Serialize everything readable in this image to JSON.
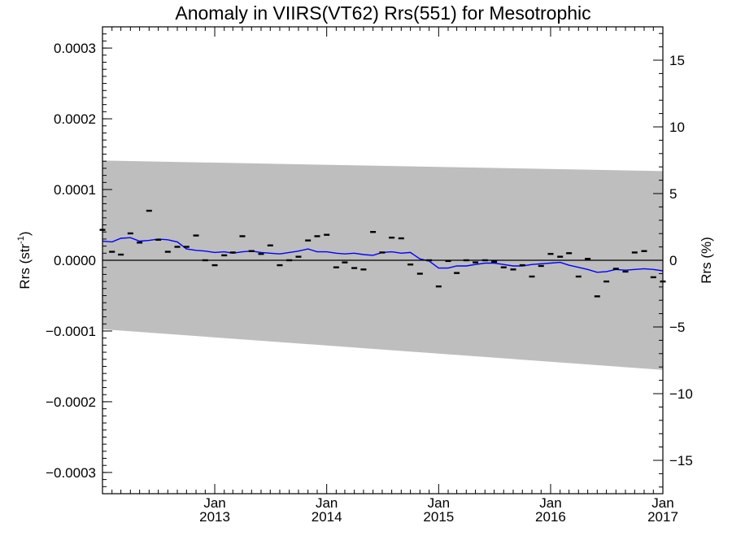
{
  "chart_data": {
    "type": "scatter",
    "title": "Anomaly in VIIRS(VT62) Rrs(551) for Mesotrophic",
    "ylabel_left": "Rrs (str",
    "ylabel_left_sup": "-1",
    "ylabel_left_close": ")",
    "ylabel_right": "Rrs (%)",
    "xlim": [
      "2012-01-01",
      "2017-01-01"
    ],
    "ylim_left": [
      -0.00033,
      0.00033
    ],
    "ylim_right": [
      -17.5,
      17.5
    ],
    "y_ticks_left": [
      {
        "value": 0.0003,
        "label": "0.0003"
      },
      {
        "value": 0.0002,
        "label": "0.0002"
      },
      {
        "value": 0.0001,
        "label": "0.0001"
      },
      {
        "value": 0.0,
        "label": "0.0000"
      },
      {
        "value": -0.0001,
        "label": "−0.0001"
      },
      {
        "value": -0.0002,
        "label": "−0.0002"
      },
      {
        "value": -0.0003,
        "label": "−0.0003"
      }
    ],
    "y_ticks_right": [
      {
        "value": 15,
        "label": "15"
      },
      {
        "value": 10,
        "label": "10"
      },
      {
        "value": 5,
        "label": "5"
      },
      {
        "value": 0,
        "label": "0"
      },
      {
        "value": -5,
        "label": "−5"
      },
      {
        "value": -10,
        "label": "−10"
      },
      {
        "value": -15,
        "label": "−15"
      }
    ],
    "x_ticks": [
      {
        "date": "2013-01-01",
        "line1": "Jan",
        "line2": "2013"
      },
      {
        "date": "2014-01-01",
        "line1": "Jan",
        "line2": "2014"
      },
      {
        "date": "2015-01-01",
        "line1": "Jan",
        "line2": "2015"
      },
      {
        "date": "2016-01-01",
        "line1": "Jan",
        "line2": "2016"
      },
      {
        "date": "2017-01-01",
        "line1": "Jan",
        "line2": "2017"
      }
    ],
    "band": {
      "color": "#bebebe",
      "start": {
        "date": "2012-01-01",
        "upper": 0.000141,
        "lower": -9.75e-05
      },
      "end": {
        "date": "2017-01-01",
        "upper": 0.000126,
        "lower": -0.000155
      }
    },
    "zero_line_color": "#000000",
    "points_color": "#000000",
    "line_color": "#0000ff",
    "points": [
      {
        "x": "2012-01-01",
        "y": 4.3e-05
      },
      {
        "x": "2012-02-01",
        "y": 1.2e-05
      },
      {
        "x": "2012-03-01",
        "y": 8e-06
      },
      {
        "x": "2012-04-01",
        "y": 3.8e-05
      },
      {
        "x": "2012-05-01",
        "y": 2.5e-05
      },
      {
        "x": "2012-06-01",
        "y": 7e-05
      },
      {
        "x": "2012-07-01",
        "y": 2.9e-05
      },
      {
        "x": "2012-08-01",
        "y": 1.2e-05
      },
      {
        "x": "2012-09-01",
        "y": 1.9e-05
      },
      {
        "x": "2012-10-01",
        "y": 1.9e-05
      },
      {
        "x": "2012-11-01",
        "y": 3.5e-05
      },
      {
        "x": "2012-12-01",
        "y": 0.0
      },
      {
        "x": "2013-01-01",
        "y": -7e-06
      },
      {
        "x": "2013-02-01",
        "y": 7e-06
      },
      {
        "x": "2013-03-01",
        "y": 1.1e-05
      },
      {
        "x": "2013-04-01",
        "y": 3.4e-05
      },
      {
        "x": "2013-05-01",
        "y": 1.3e-05
      },
      {
        "x": "2013-06-01",
        "y": 9e-06
      },
      {
        "x": "2013-07-01",
        "y": 2.1e-05
      },
      {
        "x": "2013-08-01",
        "y": -7e-06
      },
      {
        "x": "2013-09-01",
        "y": 0.0
      },
      {
        "x": "2013-10-01",
        "y": 5e-06
      },
      {
        "x": "2013-11-01",
        "y": 2.8e-05
      },
      {
        "x": "2013-12-01",
        "y": 3.4e-05
      },
      {
        "x": "2014-01-01",
        "y": 3.6e-05
      },
      {
        "x": "2014-02-01",
        "y": -1e-05
      },
      {
        "x": "2014-03-01",
        "y": -3e-06
      },
      {
        "x": "2014-04-01",
        "y": -1.1e-05
      },
      {
        "x": "2014-05-01",
        "y": -1.3e-05
      },
      {
        "x": "2014-06-01",
        "y": 4e-05
      },
      {
        "x": "2014-07-01",
        "y": 1.1e-05
      },
      {
        "x": "2014-08-01",
        "y": 3.2e-05
      },
      {
        "x": "2014-09-01",
        "y": 3.1e-05
      },
      {
        "x": "2014-10-01",
        "y": -6e-06
      },
      {
        "x": "2014-11-01",
        "y": -1.9e-05
      },
      {
        "x": "2014-12-01",
        "y": 0.0
      },
      {
        "x": "2015-01-01",
        "y": -3.7e-05
      },
      {
        "x": "2015-02-01",
        "y": -1e-06
      },
      {
        "x": "2015-03-01",
        "y": -1.8e-05
      },
      {
        "x": "2015-04-01",
        "y": 0.0
      },
      {
        "x": "2015-05-01",
        "y": -3e-06
      },
      {
        "x": "2015-06-01",
        "y": 0.0
      },
      {
        "x": "2015-07-01",
        "y": -2e-06
      },
      {
        "x": "2015-08-01",
        "y": -1e-05
      },
      {
        "x": "2015-09-01",
        "y": -1.3e-05
      },
      {
        "x": "2015-10-01",
        "y": -7e-06
      },
      {
        "x": "2015-11-01",
        "y": -2.3e-05
      },
      {
        "x": "2015-12-01",
        "y": -8e-06
      },
      {
        "x": "2016-01-01",
        "y": 9e-06
      },
      {
        "x": "2016-02-01",
        "y": 5e-06
      },
      {
        "x": "2016-03-01",
        "y": 1e-05
      },
      {
        "x": "2016-04-01",
        "y": -2.3e-05
      },
      {
        "x": "2016-05-01",
        "y": 2e-06
      },
      {
        "x": "2016-06-01",
        "y": -5.1e-05
      },
      {
        "x": "2016-07-01",
        "y": -3e-05
      },
      {
        "x": "2016-08-01",
        "y": -1.2e-05
      },
      {
        "x": "2016-09-01",
        "y": -1.6e-05
      },
      {
        "x": "2016-10-01",
        "y": 1.1e-05
      },
      {
        "x": "2016-11-01",
        "y": 1.3e-05
      },
      {
        "x": "2016-12-01",
        "y": -2.4e-05
      },
      {
        "x": "2017-01-01",
        "y": -3e-05
      }
    ],
    "line": [
      {
        "x": "2012-01-01",
        "y": 2.7e-05
      },
      {
        "x": "2012-02-01",
        "y": 2.6e-05
      },
      {
        "x": "2012-03-01",
        "y": 3.1e-05
      },
      {
        "x": "2012-04-01",
        "y": 3.2e-05
      },
      {
        "x": "2012-05-01",
        "y": 2.7e-05
      },
      {
        "x": "2012-06-01",
        "y": 2.8e-05
      },
      {
        "x": "2012-07-01",
        "y": 3e-05
      },
      {
        "x": "2012-08-01",
        "y": 2.9e-05
      },
      {
        "x": "2012-09-01",
        "y": 2.6e-05
      },
      {
        "x": "2012-10-01",
        "y": 1.6e-05
      },
      {
        "x": "2012-11-01",
        "y": 1.4e-05
      },
      {
        "x": "2012-12-01",
        "y": 1.3e-05
      },
      {
        "x": "2013-01-01",
        "y": 1.1e-05
      },
      {
        "x": "2013-02-01",
        "y": 1.2e-05
      },
      {
        "x": "2013-03-01",
        "y": 1e-05
      },
      {
        "x": "2013-04-01",
        "y": 1.2e-05
      },
      {
        "x": "2013-05-01",
        "y": 1.3e-05
      },
      {
        "x": "2013-06-01",
        "y": 1.1e-05
      },
      {
        "x": "2013-07-01",
        "y": 1e-05
      },
      {
        "x": "2013-08-01",
        "y": 9e-06
      },
      {
        "x": "2013-09-01",
        "y": 1.1e-05
      },
      {
        "x": "2013-10-01",
        "y": 1.3e-05
      },
      {
        "x": "2013-11-01",
        "y": 1.6e-05
      },
      {
        "x": "2013-12-01",
        "y": 1.2e-05
      },
      {
        "x": "2014-01-01",
        "y": 1.2e-05
      },
      {
        "x": "2014-02-01",
        "y": 1e-05
      },
      {
        "x": "2014-03-01",
        "y": 9e-06
      },
      {
        "x": "2014-04-01",
        "y": 1e-05
      },
      {
        "x": "2014-05-01",
        "y": 8e-06
      },
      {
        "x": "2014-06-01",
        "y": 7e-06
      },
      {
        "x": "2014-07-01",
        "y": 1.1e-05
      },
      {
        "x": "2014-08-01",
        "y": 1.2e-05
      },
      {
        "x": "2014-09-01",
        "y": 1e-05
      },
      {
        "x": "2014-10-01",
        "y": 1.1e-05
      },
      {
        "x": "2014-11-01",
        "y": 2e-06
      },
      {
        "x": "2014-12-01",
        "y": -1e-06
      },
      {
        "x": "2015-01-01",
        "y": -1.1e-05
      },
      {
        "x": "2015-02-01",
        "y": -1.1e-05
      },
      {
        "x": "2015-03-01",
        "y": -8e-06
      },
      {
        "x": "2015-04-01",
        "y": -8e-06
      },
      {
        "x": "2015-05-01",
        "y": -6e-06
      },
      {
        "x": "2015-06-01",
        "y": -4e-06
      },
      {
        "x": "2015-07-01",
        "y": -4e-06
      },
      {
        "x": "2015-08-01",
        "y": -6e-06
      },
      {
        "x": "2015-09-01",
        "y": -8e-06
      },
      {
        "x": "2015-10-01",
        "y": -8e-06
      },
      {
        "x": "2015-11-01",
        "y": -6e-06
      },
      {
        "x": "2015-12-01",
        "y": -5e-06
      },
      {
        "x": "2016-01-01",
        "y": -4e-06
      },
      {
        "x": "2016-02-01",
        "y": -3e-06
      },
      {
        "x": "2016-03-01",
        "y": -7e-06
      },
      {
        "x": "2016-04-01",
        "y": -1e-05
      },
      {
        "x": "2016-05-01",
        "y": -1.3e-05
      },
      {
        "x": "2016-06-01",
        "y": -1.7e-05
      },
      {
        "x": "2016-07-01",
        "y": -1.6e-05
      },
      {
        "x": "2016-08-01",
        "y": -1.3e-05
      },
      {
        "x": "2016-09-01",
        "y": -1.4e-05
      },
      {
        "x": "2016-10-01",
        "y": -1.3e-05
      },
      {
        "x": "2016-11-01",
        "y": -1.2e-05
      },
      {
        "x": "2016-12-01",
        "y": -1.3e-05
      },
      {
        "x": "2017-01-01",
        "y": -1.5e-05
      }
    ]
  }
}
